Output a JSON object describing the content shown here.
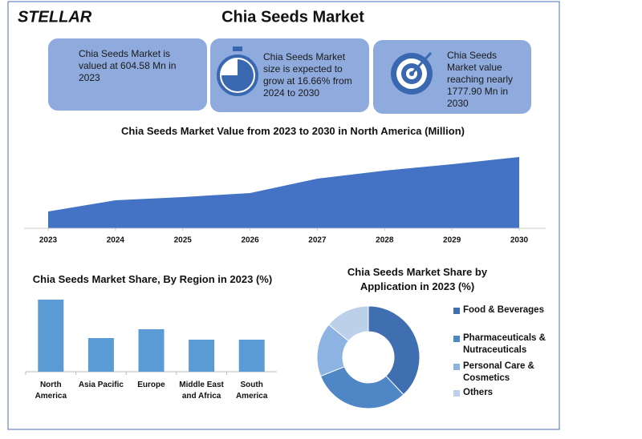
{
  "logo": "STELLAR",
  "header": {
    "title": "Chia Seeds Market"
  },
  "info_boxes": [
    "Chia Seeds Market is valued at 604.58 Mn in 2023",
    "Chia Seeds Market size is expected to grow at 16.66% from 2024 to 2030",
    "Chia Seeds Market value reaching nearly 1777.90 Mn in 2030"
  ],
  "chart_data": [
    {
      "type": "area",
      "title": "Chia Seeds Market Value from 2023 to 2030 in North America (Million)",
      "x": [
        2023,
        2024,
        2025,
        2026,
        2027,
        2028,
        2029,
        2030
      ],
      "values": [
        21,
        35,
        39,
        44,
        62,
        72,
        80,
        89
      ],
      "xlim": [
        2023,
        2030
      ],
      "xticks": [
        2023,
        2024,
        2025,
        2026,
        2027,
        2028,
        2029,
        2030
      ],
      "ylim": [
        0,
        100
      ],
      "color": "#4472c4"
    },
    {
      "type": "bar",
      "title": "Chia Seeds Market Share, By Region in 2023 (%)",
      "categories": [
        "North America",
        "Asia Pacific",
        "Europe",
        "Middle East and Africa",
        "South America"
      ],
      "values": [
        90,
        42,
        53,
        40,
        40
      ],
      "ylim": [
        0,
        100
      ],
      "color": "#5b9bd5"
    },
    {
      "type": "donut",
      "title": "Chia Seeds Market Share by Application in 2023 (%)",
      "categories": [
        "Food & Beverages",
        "Pharmaceuticals & Nutraceuticals",
        "Personal Care & Cosmetics",
        "Others"
      ],
      "values": [
        38,
        31,
        17,
        14
      ],
      "colors": [
        "#3f6fb0",
        "#4f86c6",
        "#8db3e2",
        "#bcd0ea"
      ]
    }
  ]
}
